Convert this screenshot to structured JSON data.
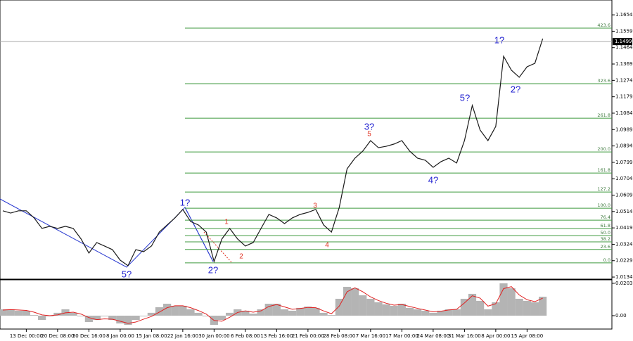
{
  "chart_data": [
    {
      "type": "line",
      "categories": [
        null,
        null,
        null,
        "13 Dec 00:00",
        null,
        null,
        null,
        "20 Dec 08:00",
        null,
        null,
        null,
        "30 Dec 16:00",
        null,
        null,
        null,
        "8 Jan 00:00",
        null,
        null,
        null,
        "15 Jan 08:00",
        null,
        null,
        null,
        "22 Jan 16:00",
        null,
        null,
        null,
        "30 Jan 00:00",
        null,
        null,
        null,
        "6 Feb 08:00",
        null,
        null,
        null,
        "13 Feb 16:00",
        null,
        null,
        null,
        "21 Feb 00:00",
        null,
        null,
        null,
        "28 Feb 08:00",
        null,
        null,
        null,
        "7 Mar 16:00",
        null,
        null,
        null,
        "17 Mar 00:00",
        null,
        null,
        null,
        "24 Mar 08:00",
        null,
        null,
        null,
        "31 Mar 16:00",
        null,
        null,
        null,
        "8 Apr 00:00",
        null,
        null,
        null,
        "15 Apr 08:00",
        null,
        null
      ],
      "series": [
        {
          "color": "#1a1a1a",
          "values": [
            1.0518,
            1.0505,
            1.0518,
            1.0518,
            1.0477,
            1.0416,
            1.0428,
            1.0416,
            1.0428,
            1.0416,
            1.0355,
            1.0273,
            1.0334,
            1.0314,
            1.0293,
            1.0232,
            1.02,
            1.0293,
            1.0281,
            1.0314,
            1.0395,
            1.0436,
            1.0477,
            1.0526,
            1.0456,
            1.0436,
            1.0395,
            1.0224,
            1.0355,
            1.0416,
            1.0355,
            1.0314,
            1.0334,
            1.0416,
            1.0497,
            1.0477,
            1.0444,
            1.0477,
            1.0497,
            1.0509,
            1.0526,
            1.0436,
            1.0395,
            1.0538,
            1.0762,
            1.0823,
            1.0864,
            1.0925,
            1.0884,
            1.0892,
            1.0905,
            1.0925,
            1.0864,
            1.0823,
            1.0811,
            1.077,
            1.0803,
            1.0823,
            1.0795,
            1.0925,
            1.1129,
            1.0986,
            1.0925,
            1.1007,
            1.1414,
            1.1333,
            1.1292,
            1.1353,
            1.1373,
            1.1516
          ]
        }
      ],
      "ylim": [
        1.0122,
        1.174
      ],
      "yticks": [
        1.1654,
        1.1559,
        1.1464,
        1.1369,
        1.1274,
        1.1179,
        1.1084,
        1.0989,
        1.0894,
        1.0799,
        1.0704,
        1.0609,
        1.0514,
        1.0419,
        1.0324,
        1.0229,
        1.0134
      ],
      "current_price": 1.1499,
      "levels_color": "#3f9a3f",
      "levels": [
        {
          "label": "0.0",
          "value": 1.0216
        },
        {
          "label": "23.6",
          "value": 1.0294
        },
        {
          "label": "38.2",
          "value": 1.0338
        },
        {
          "label": "50.0",
          "value": 1.0374
        },
        {
          "label": "61.8",
          "value": 1.0415
        },
        {
          "label": "76.4",
          "value": 1.0464
        },
        {
          "label": "100.0",
          "value": 1.0533
        },
        {
          "label": "127.2",
          "value": 1.0627
        },
        {
          "label": "161.8",
          "value": 1.0737
        },
        {
          "label": "200.0",
          "value": 1.0859
        },
        {
          "label": "261.8",
          "value": 1.1055
        },
        {
          "label": "323.6",
          "value": 1.1255
        },
        {
          "label": "423.6",
          "value": 1.1577
        }
      ],
      "annotations": [
        {
          "text": "5?",
          "color": "#2020d0"
        },
        {
          "text": "1?",
          "color": "#2020d0"
        },
        {
          "text": "2?",
          "color": "#2020d0"
        },
        {
          "text": "1",
          "color": "#e03020"
        },
        {
          "text": "2",
          "color": "#e03020"
        },
        {
          "text": "3",
          "color": "#e03020"
        },
        {
          "text": "4",
          "color": "#e03020"
        },
        {
          "text": "5",
          "color": "#e03020"
        },
        {
          "text": "3?",
          "color": "#2020d0"
        },
        {
          "text": "4?",
          "color": "#2020d0"
        },
        {
          "text": "5?",
          "color": "#2020d0"
        },
        {
          "text": "1?",
          "color": "#2020d0"
        },
        {
          "text": "2?",
          "color": "#2020d0"
        }
      ]
    },
    {
      "type": "bar",
      "series": [
        {
          "color": "#b4b4b4",
          "values": [
            0.004,
            0.004,
            0.0031,
            0.0031,
            0.0004,
            -0.0027,
            -0.0004,
            0.0018,
            0.004,
            0.0018,
            -0.0004,
            -0.004,
            -0.0027,
            -0.0004,
            -0.0027,
            -0.0049,
            -0.0058,
            -0.0027,
            -0.0004,
            0.0018,
            0.0053,
            0.0075,
            0.0062,
            0.0062,
            0.004,
            0.0018,
            -0.0004,
            -0.0058,
            -0.0027,
            0.0018,
            0.004,
            0.0031,
            0.0013,
            0.004,
            0.0075,
            0.0075,
            0.004,
            0.0031,
            0.0049,
            0.0057,
            0.0049,
            0.0018,
            0.0004,
            0.0106,
            0.0181,
            0.0172,
            0.0128,
            0.0106,
            0.0084,
            0.0071,
            0.0062,
            0.0075,
            0.0049,
            0.004,
            0.0031,
            0.0018,
            0.0031,
            0.004,
            0.004,
            0.0106,
            0.0137,
            0.0093,
            0.004,
            0.0084,
            0.0203,
            0.0172,
            0.0106,
            0.0093,
            0.0084,
            0.0119
          ]
        },
        {
          "type": "line",
          "color": "#e02020",
          "values": [
            0.0035,
            0.0038,
            0.0036,
            0.0033,
            0.0022,
            0.0005,
            0.0,
            0.0005,
            0.0018,
            0.0022,
            0.001,
            -0.0012,
            -0.0025,
            -0.002,
            -0.0022,
            -0.0035,
            -0.0048,
            -0.004,
            -0.0022,
            -0.0005,
            0.0022,
            0.005,
            0.0062,
            0.0062,
            0.005,
            0.0032,
            0.001,
            -0.003,
            -0.0035,
            -0.001,
            0.002,
            0.003,
            0.0022,
            0.003,
            0.0058,
            0.007,
            0.0055,
            0.004,
            0.0045,
            0.0052,
            0.005,
            0.003,
            0.0012,
            0.006,
            0.015,
            0.0175,
            0.015,
            0.0118,
            0.0095,
            0.0078,
            0.0066,
            0.007,
            0.0058,
            0.0046,
            0.0035,
            0.0024,
            0.0028,
            0.0036,
            0.004,
            0.008,
            0.0125,
            0.011,
            0.006,
            0.0075,
            0.017,
            0.0182,
            0.013,
            0.01,
            0.0088,
            0.011
          ]
        }
      ],
      "ylim": [
        -0.0084,
        0.0225
      ],
      "yticks": [
        0.02032,
        {
          "value": 0,
          "label": "0.00"
        }
      ]
    }
  ]
}
